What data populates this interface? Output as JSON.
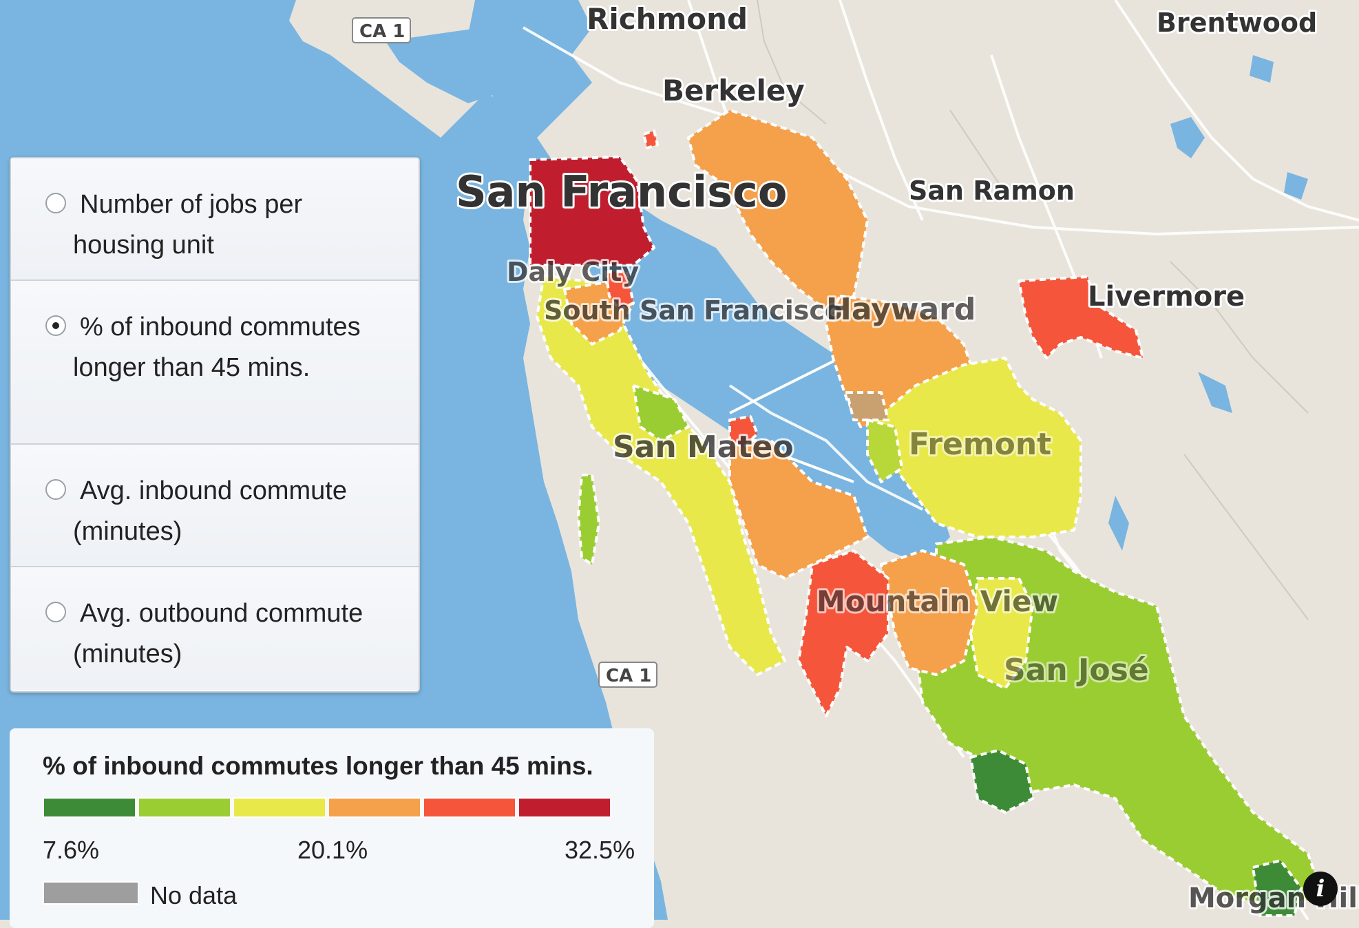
{
  "map": {
    "places": [
      {
        "name": "Richmond"
      },
      {
        "name": "Brentwood"
      },
      {
        "name": "Berkeley"
      },
      {
        "name": "San Francisco"
      },
      {
        "name": "San Ramon"
      },
      {
        "name": "Daly City"
      },
      {
        "name": "South San Francisco"
      },
      {
        "name": "Hayward"
      },
      {
        "name": "Livermore"
      },
      {
        "name": "San Mateo"
      },
      {
        "name": "Fremont"
      },
      {
        "name": "Mountain View"
      },
      {
        "name": "San José"
      },
      {
        "name": "Morgan Hill"
      }
    ],
    "shields": [
      "CA 1",
      "CA 1"
    ],
    "colors": {
      "water": "#79b5e0",
      "land": "#e8e4dc",
      "outline": "#ffffff"
    }
  },
  "selector": {
    "options": [
      {
        "label": "Number of jobs per housing unit",
        "checked": false
      },
      {
        "label": "% of inbound commutes longer than 45 mins.",
        "checked": true
      },
      {
        "label": "Avg. inbound commute (minutes)",
        "checked": false
      },
      {
        "label": "Avg. outbound commute (minutes)",
        "checked": false
      }
    ]
  },
  "legend": {
    "title": "% of inbound commutes longer than 45 mins.",
    "colors": [
      "#3d8b37",
      "#9acd32",
      "#e8e84a",
      "#f5a04a",
      "#f5553a",
      "#c01e2e"
    ],
    "ticks": [
      "7.6%",
      "20.1%",
      "32.5%"
    ],
    "no_data_label": "No data",
    "no_data_color": "#9e9e9e"
  },
  "info_button": {
    "label": "i"
  }
}
